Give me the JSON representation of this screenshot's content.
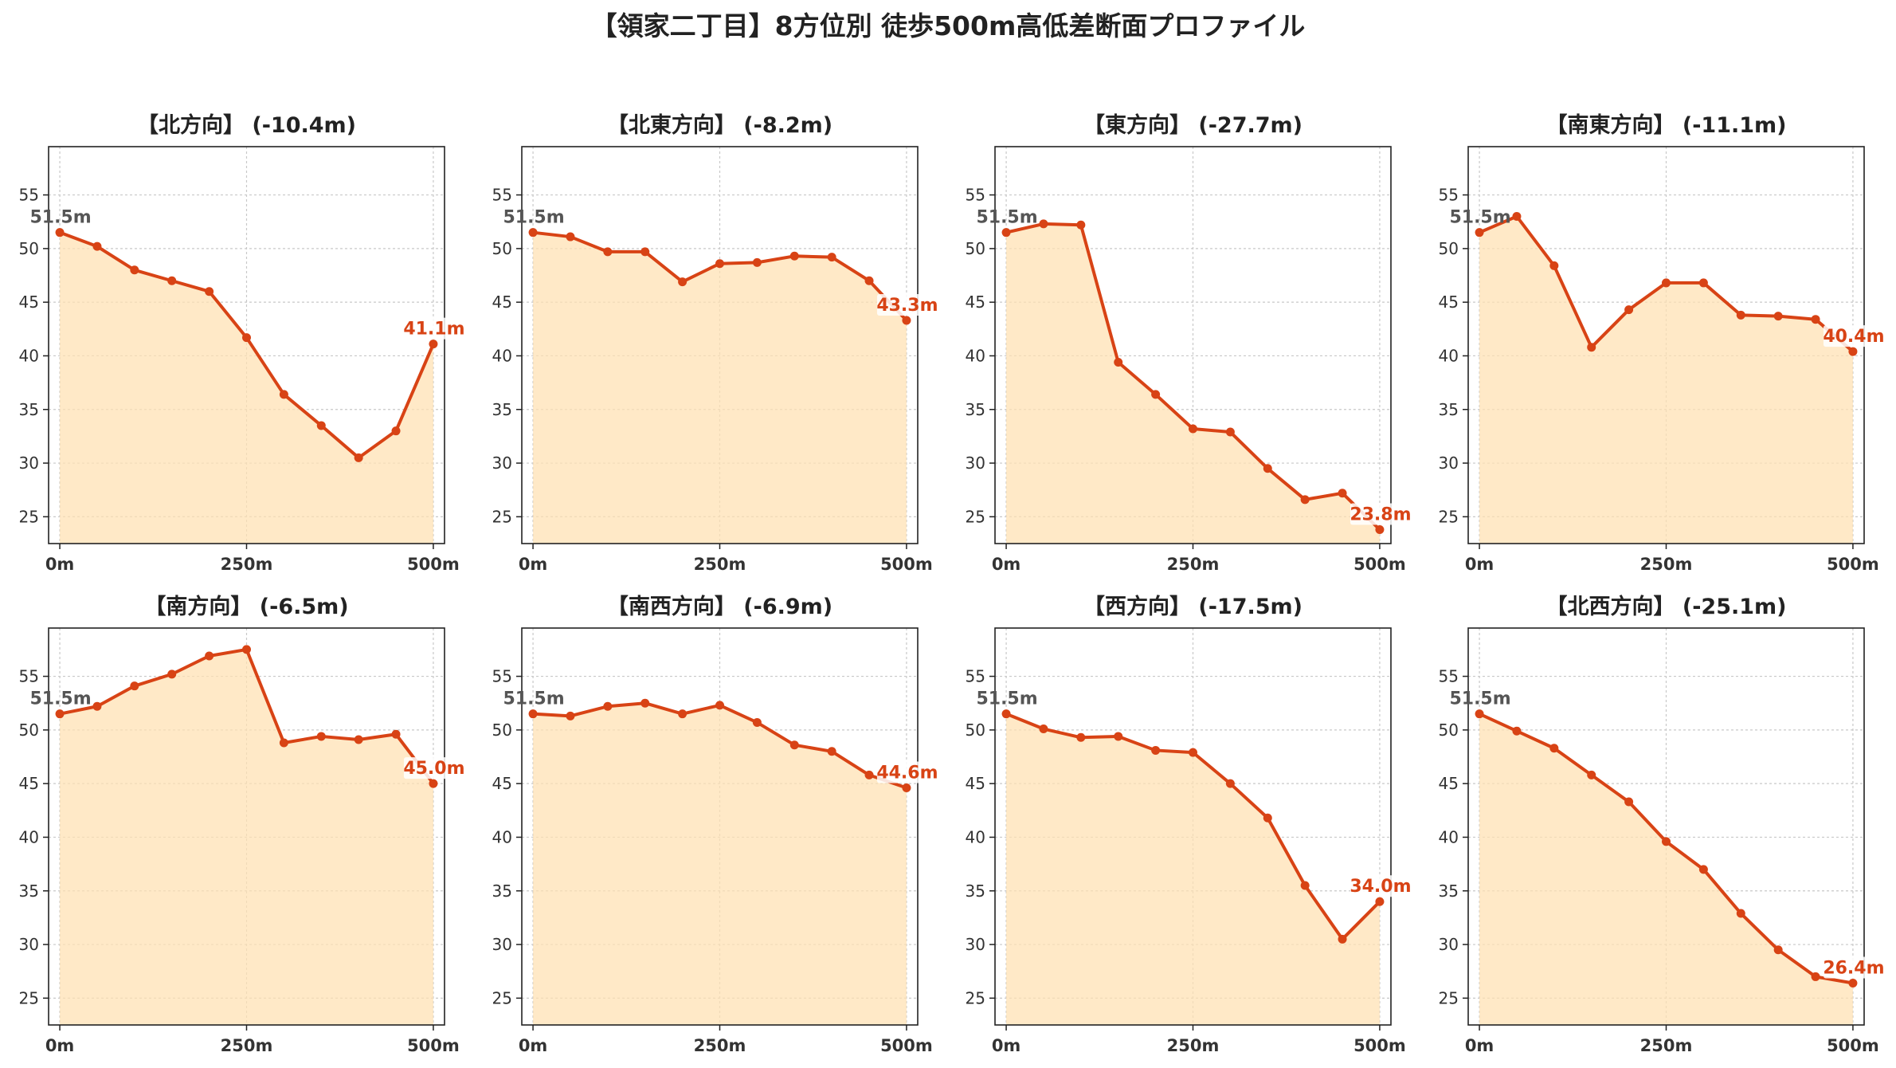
{
  "suptitle": "【領家二丁目】8方位別 徒歩500m高低差断面プロファイル",
  "colors": {
    "line": "#d84315",
    "fill": "#ffe0b2",
    "start_label": "#555555",
    "end_label": "#d84315",
    "grid": "#c8c8c8",
    "title": "#222222",
    "tick": "#333333"
  },
  "chart_data": [
    {
      "type": "area",
      "title": "【北方向】 (-10.4m)",
      "x": [
        0,
        50,
        100,
        150,
        200,
        250,
        300,
        350,
        400,
        450,
        500
      ],
      "x_ticks": [
        0,
        250,
        500
      ],
      "x_tick_labels": [
        "0m",
        "250m",
        "500m"
      ],
      "y": [
        51.5,
        50.2,
        48.0,
        47.0,
        46.0,
        41.7,
        36.4,
        33.5,
        30.5,
        33.0,
        41.1
      ],
      "y_ticks": [
        25,
        30,
        35,
        40,
        45,
        50,
        55
      ],
      "ylim": [
        22.5,
        59.5
      ],
      "xlim": [
        -15,
        515
      ],
      "start_label": "51.5m",
      "end_label": "41.1m",
      "grid": true
    },
    {
      "type": "area",
      "title": "【北東方向】 (-8.2m)",
      "x": [
        0,
        50,
        100,
        150,
        200,
        250,
        300,
        350,
        400,
        450,
        500
      ],
      "x_ticks": [
        0,
        250,
        500
      ],
      "x_tick_labels": [
        "0m",
        "250m",
        "500m"
      ],
      "y": [
        51.5,
        51.1,
        49.7,
        49.7,
        46.9,
        48.6,
        48.7,
        49.3,
        49.2,
        47.0,
        43.3
      ],
      "y_ticks": [
        25,
        30,
        35,
        40,
        45,
        50,
        55
      ],
      "ylim": [
        22.5,
        59.5
      ],
      "xlim": [
        -15,
        515
      ],
      "start_label": "51.5m",
      "end_label": "43.3m",
      "grid": true
    },
    {
      "type": "area",
      "title": "【東方向】 (-27.7m)",
      "x": [
        0,
        50,
        100,
        150,
        200,
        250,
        300,
        350,
        400,
        450,
        500
      ],
      "x_ticks": [
        0,
        250,
        500
      ],
      "x_tick_labels": [
        "0m",
        "250m",
        "500m"
      ],
      "y": [
        51.5,
        52.3,
        52.2,
        39.4,
        36.4,
        33.2,
        32.9,
        29.5,
        26.6,
        27.2,
        23.8
      ],
      "y_ticks": [
        25,
        30,
        35,
        40,
        45,
        50,
        55
      ],
      "ylim": [
        22.5,
        59.5
      ],
      "xlim": [
        -15,
        515
      ],
      "start_label": "51.5m",
      "end_label": "23.8m",
      "grid": true
    },
    {
      "type": "area",
      "title": "【南東方向】 (-11.1m)",
      "x": [
        0,
        50,
        100,
        150,
        200,
        250,
        300,
        350,
        400,
        450,
        500
      ],
      "x_ticks": [
        0,
        250,
        500
      ],
      "x_tick_labels": [
        "0m",
        "250m",
        "500m"
      ],
      "y": [
        51.5,
        53.0,
        48.4,
        40.8,
        44.3,
        46.8,
        46.8,
        43.8,
        43.7,
        43.4,
        40.4
      ],
      "y_ticks": [
        25,
        30,
        35,
        40,
        45,
        50,
        55
      ],
      "ylim": [
        22.5,
        59.5
      ],
      "xlim": [
        -15,
        515
      ],
      "start_label": "51.5m",
      "end_label": "40.4m",
      "grid": true
    },
    {
      "type": "area",
      "title": "【南方向】 (-6.5m)",
      "x": [
        0,
        50,
        100,
        150,
        200,
        250,
        300,
        350,
        400,
        450,
        500
      ],
      "x_ticks": [
        0,
        250,
        500
      ],
      "x_tick_labels": [
        "0m",
        "250m",
        "500m"
      ],
      "y": [
        51.5,
        52.2,
        54.1,
        55.2,
        56.9,
        57.5,
        48.8,
        49.4,
        49.1,
        49.6,
        45.0
      ],
      "y_ticks": [
        25,
        30,
        35,
        40,
        45,
        50,
        55
      ],
      "ylim": [
        22.5,
        59.5
      ],
      "xlim": [
        -15,
        515
      ],
      "start_label": "51.5m",
      "end_label": "45.0m",
      "grid": true
    },
    {
      "type": "area",
      "title": "【南西方向】 (-6.9m)",
      "x": [
        0,
        50,
        100,
        150,
        200,
        250,
        300,
        350,
        400,
        450,
        500
      ],
      "x_ticks": [
        0,
        250,
        500
      ],
      "x_tick_labels": [
        "0m",
        "250m",
        "500m"
      ],
      "y": [
        51.5,
        51.3,
        52.2,
        52.5,
        51.5,
        52.3,
        50.7,
        48.6,
        48.0,
        45.8,
        44.6
      ],
      "y_ticks": [
        25,
        30,
        35,
        40,
        45,
        50,
        55
      ],
      "ylim": [
        22.5,
        59.5
      ],
      "xlim": [
        -15,
        515
      ],
      "start_label": "51.5m",
      "end_label": "44.6m",
      "grid": true
    },
    {
      "type": "area",
      "title": "【西方向】 (-17.5m)",
      "x": [
        0,
        50,
        100,
        150,
        200,
        250,
        300,
        350,
        400,
        450,
        500
      ],
      "x_ticks": [
        0,
        250,
        500
      ],
      "x_tick_labels": [
        "0m",
        "250m",
        "500m"
      ],
      "y": [
        51.5,
        50.1,
        49.3,
        49.4,
        48.1,
        47.9,
        45.0,
        41.8,
        35.5,
        30.5,
        34.0
      ],
      "y_ticks": [
        25,
        30,
        35,
        40,
        45,
        50,
        55
      ],
      "ylim": [
        22.5,
        59.5
      ],
      "xlim": [
        -15,
        515
      ],
      "start_label": "51.5m",
      "end_label": "34.0m",
      "grid": true
    },
    {
      "type": "area",
      "title": "【北西方向】 (-25.1m)",
      "x": [
        0,
        50,
        100,
        150,
        200,
        250,
        300,
        350,
        400,
        450,
        500
      ],
      "x_ticks": [
        0,
        250,
        500
      ],
      "x_tick_labels": [
        "0m",
        "250m",
        "500m"
      ],
      "y": [
        51.5,
        49.9,
        48.3,
        45.8,
        43.3,
        39.6,
        37.0,
        32.9,
        29.5,
        27.0,
        26.4
      ],
      "y_ticks": [
        25,
        30,
        35,
        40,
        45,
        50,
        55
      ],
      "ylim": [
        22.5,
        59.5
      ],
      "xlim": [
        -15,
        515
      ],
      "start_label": "51.5m",
      "end_label": "26.4m",
      "grid": true
    }
  ]
}
